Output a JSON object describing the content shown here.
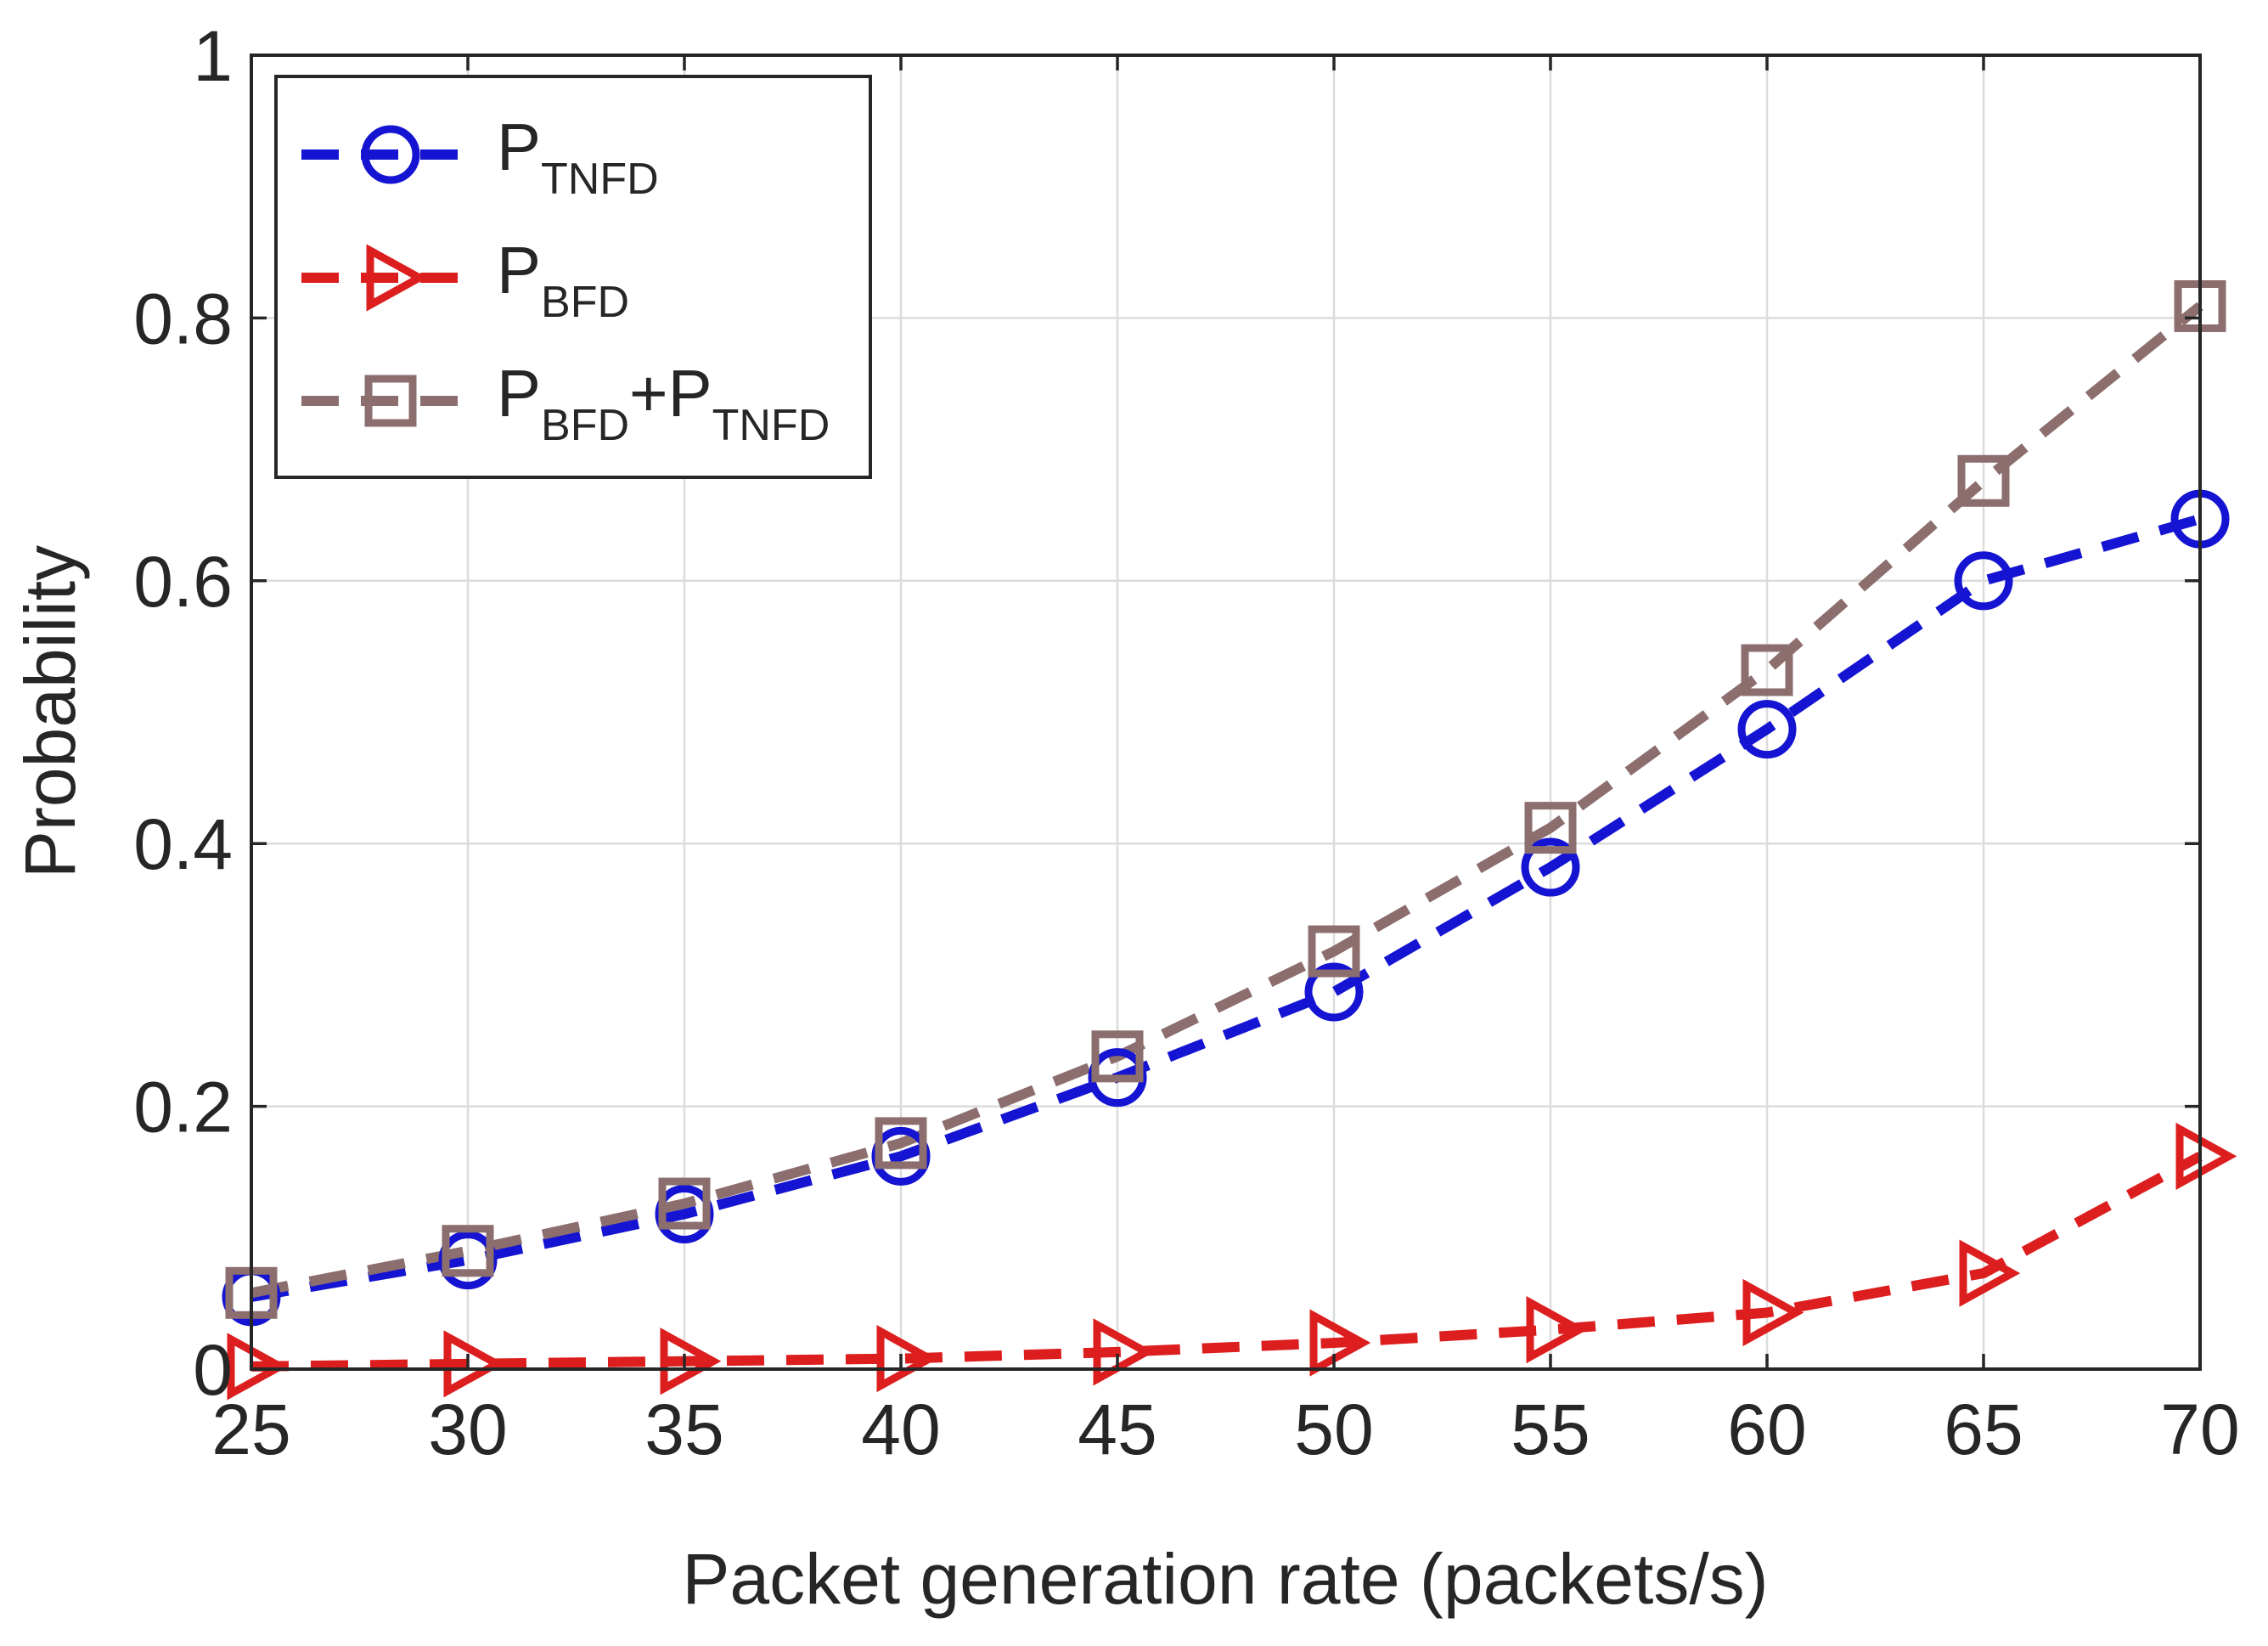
{
  "chart_data": {
    "type": "line",
    "title": "",
    "xlabel": "Packet generation rate (packets/s)",
    "ylabel": "Probability",
    "x": [
      25,
      30,
      35,
      40,
      45,
      50,
      55,
      60,
      65,
      70
    ],
    "xlim": [
      25,
      70
    ],
    "ylim": [
      0,
      1
    ],
    "xticks": [
      25,
      30,
      35,
      40,
      45,
      50,
      55,
      60,
      65,
      70
    ],
    "xtick_labels": [
      "25",
      "30",
      "35",
      "40",
      "45",
      "50",
      "55",
      "60",
      "65",
      "70"
    ],
    "yticks": [
      0,
      0.2,
      0.4,
      0.6,
      0.8,
      1
    ],
    "ytick_labels": [
      "0",
      "0.2",
      "0.4",
      "0.6",
      "0.8",
      "1"
    ],
    "grid": true,
    "legend_position": "top-left",
    "series": [
      {
        "name": "P_TNFD",
        "legend_main": "P",
        "legend_sub": "TNFD",
        "color": "#1414d2",
        "marker": "circle",
        "values": [
          0.055,
          0.083,
          0.118,
          0.162,
          0.222,
          0.287,
          0.382,
          0.487,
          0.6,
          0.647
        ]
      },
      {
        "name": "P_BFD",
        "legend_main": "P",
        "legend_sub": "BFD",
        "color": "#dc1e1e",
        "marker": "triangle-right",
        "values": [
          0.002,
          0.004,
          0.006,
          0.008,
          0.013,
          0.02,
          0.03,
          0.043,
          0.073,
          0.162
        ]
      },
      {
        "name": "P_BFD+P_TNFD",
        "legend_main": "P",
        "legend_sub": "BFD",
        "legend_main2": "+P",
        "legend_sub2": "TNFD",
        "color": "#8c6e6e",
        "marker": "square",
        "values": [
          0.058,
          0.09,
          0.126,
          0.172,
          0.238,
          0.318,
          0.412,
          0.532,
          0.676,
          0.809
        ]
      }
    ]
  }
}
